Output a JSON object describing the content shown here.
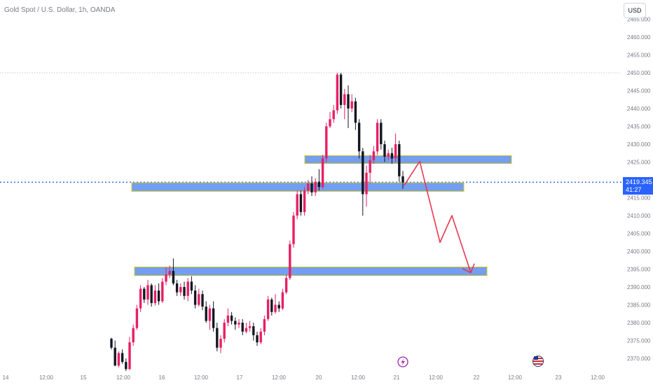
{
  "header": {
    "title": "Gold Spot / U.S. Dollar, 1h, OANDA",
    "currency_button": "USD"
  },
  "price_badge": {
    "price": "2419.345",
    "countdown": "41:27"
  },
  "colors": {
    "up": "#e91e63",
    "down": "#131722",
    "zone_fill": "#5b8def",
    "zone_border": "#d4c91a",
    "arrow": "#e53950",
    "current_price": "#2962ff"
  },
  "chart_data": {
    "type": "candlestick",
    "title": "Gold Spot / U.S. Dollar, 1h, OANDA",
    "ylim": [
      2367,
      2466
    ],
    "y_ticks": [
      "2370.000",
      "2375.000",
      "2380.000",
      "2385.000",
      "2390.000",
      "2395.000",
      "2400.000",
      "2405.000",
      "2410.000",
      "2415.000",
      "2420.000",
      "2425.000",
      "2430.000",
      "2435.000",
      "2440.000",
      "2445.000",
      "2450.000",
      "2455.000",
      "2460.000",
      "2465.000"
    ],
    "x_ticks": [
      "14",
      "12:00",
      "15",
      "12:00",
      "16",
      "12:00",
      "17",
      "12:00",
      "20",
      "12:00",
      "21",
      "12:00",
      "22",
      "12:00",
      "23",
      "12:00"
    ],
    "current_price": 2419.345,
    "high_line": 2450.0,
    "zones": [
      {
        "from": 2426.8,
        "to": 2424.6
      },
      {
        "from": 2419.2,
        "to": 2416.8
      },
      {
        "from": 2395.6,
        "to": 2393.2
      }
    ],
    "projection": [
      2418.5,
      2425.2,
      2402.5,
      2410.0,
      2394.0
    ],
    "candles": [
      [
        2375.5,
        2373.0,
        2375.8,
        2372.5
      ],
      [
        2373.0,
        2368.0,
        2375.0,
        2367.8
      ],
      [
        2368.0,
        2371.5,
        2372.0,
        2367.5
      ],
      [
        2371.5,
        2369.0,
        2372.5,
        2368.5
      ],
      [
        2369.0,
        2367.0,
        2370.0,
        2366.5
      ],
      [
        2367.0,
        2374.5,
        2376.0,
        2366.8
      ],
      [
        2374.5,
        2378.5,
        2379.5,
        2373.5
      ],
      [
        2378.5,
        2384.0,
        2385.0,
        2378.0
      ],
      [
        2384.0,
        2389.5,
        2390.5,
        2383.0
      ],
      [
        2389.5,
        2386.5,
        2390.0,
        2385.5
      ],
      [
        2386.5,
        2390.5,
        2392.0,
        2385.0
      ],
      [
        2390.5,
        2385.5,
        2391.0,
        2384.5
      ],
      [
        2385.5,
        2389.0,
        2390.5,
        2384.8
      ],
      [
        2389.0,
        2386.0,
        2391.0,
        2385.0
      ],
      [
        2386.0,
        2391.5,
        2392.5,
        2385.5
      ],
      [
        2391.5,
        2393.5,
        2395.5,
        2390.5
      ],
      [
        2393.5,
        2394.5,
        2396.0,
        2392.5
      ],
      [
        2394.5,
        2391.0,
        2398.0,
        2390.5
      ],
      [
        2391.0,
        2388.5,
        2392.0,
        2387.5
      ],
      [
        2388.5,
        2390.0,
        2391.0,
        2387.5
      ],
      [
        2390.0,
        2387.5,
        2391.5,
        2386.5
      ],
      [
        2387.5,
        2391.5,
        2392.5,
        2386.0
      ],
      [
        2391.5,
        2389.0,
        2393.0,
        2388.0
      ],
      [
        2389.0,
        2385.0,
        2390.5,
        2384.0
      ],
      [
        2385.0,
        2388.0,
        2389.5,
        2384.5
      ],
      [
        2388.0,
        2384.5,
        2389.0,
        2383.5
      ],
      [
        2384.5,
        2380.5,
        2386.0,
        2380.0
      ],
      [
        2380.5,
        2384.0,
        2385.0,
        2378.0
      ],
      [
        2384.0,
        2378.5,
        2386.0,
        2377.5
      ],
      [
        2378.5,
        2373.0,
        2380.0,
        2372.0
      ],
      [
        2373.0,
        2375.5,
        2376.5,
        2371.5
      ],
      [
        2375.5,
        2380.0,
        2381.0,
        2374.5
      ],
      [
        2380.0,
        2382.0,
        2384.0,
        2379.0
      ],
      [
        2382.0,
        2380.5,
        2383.0,
        2379.5
      ],
      [
        2380.5,
        2379.5,
        2381.5,
        2378.0
      ],
      [
        2379.5,
        2380.0,
        2381.0,
        2378.5
      ],
      [
        2380.0,
        2377.5,
        2381.0,
        2376.5
      ],
      [
        2377.5,
        2378.5,
        2380.0,
        2377.0
      ],
      [
        2378.5,
        2379.0,
        2380.5,
        2377.5
      ],
      [
        2379.0,
        2376.5,
        2380.0,
        2375.0
      ],
      [
        2376.5,
        2374.5,
        2377.5,
        2373.5
      ],
      [
        2374.5,
        2377.5,
        2378.5,
        2374.0
      ],
      [
        2377.5,
        2381.0,
        2382.0,
        2376.5
      ],
      [
        2381.0,
        2386.5,
        2387.5,
        2380.5
      ],
      [
        2386.5,
        2383.0,
        2387.0,
        2382.0
      ],
      [
        2383.0,
        2385.0,
        2388.0,
        2382.5
      ],
      [
        2385.0,
        2384.0,
        2386.0,
        2383.0
      ],
      [
        2384.0,
        2388.5,
        2389.5,
        2383.5
      ],
      [
        2388.5,
        2392.5,
        2393.5,
        2388.0
      ],
      [
        2392.5,
        2402.0,
        2403.0,
        2392.0
      ],
      [
        2402.0,
        2410.0,
        2411.0,
        2401.0
      ],
      [
        2410.0,
        2416.0,
        2417.0,
        2409.0
      ],
      [
        2416.0,
        2411.0,
        2417.0,
        2410.0
      ],
      [
        2411.0,
        2417.0,
        2418.0,
        2410.0
      ],
      [
        2417.0,
        2419.0,
        2420.0,
        2416.0
      ],
      [
        2419.0,
        2416.5,
        2421.0,
        2415.5
      ],
      [
        2416.5,
        2419.5,
        2420.5,
        2415.5
      ],
      [
        2419.5,
        2418.0,
        2423.0,
        2417.0
      ],
      [
        2418.0,
        2426.0,
        2427.0,
        2417.5
      ],
      [
        2426.0,
        2435.0,
        2436.0,
        2425.0
      ],
      [
        2435.0,
        2437.0,
        2439.0,
        2434.5
      ],
      [
        2437.0,
        2439.5,
        2441.0,
        2436.0
      ],
      [
        2439.5,
        2449.5,
        2450.0,
        2438.5
      ],
      [
        2449.5,
        2441.0,
        2450.0,
        2440.0
      ],
      [
        2441.0,
        2444.0,
        2445.5,
        2437.0
      ],
      [
        2444.0,
        2440.0,
        2446.5,
        2434.5
      ],
      [
        2440.0,
        2442.0,
        2444.0,
        2439.0
      ],
      [
        2442.0,
        2436.0,
        2443.0,
        2434.0
      ],
      [
        2436.0,
        2428.0,
        2437.0,
        2426.0
      ],
      [
        2428.0,
        2416.0,
        2429.0,
        2410.0
      ],
      [
        2416.0,
        2422.0,
        2424.0,
        2412.5
      ],
      [
        2422.0,
        2425.5,
        2427.0,
        2419.0
      ],
      [
        2425.5,
        2428.0,
        2429.5,
        2424.5
      ],
      [
        2428.0,
        2436.0,
        2437.0,
        2427.0
      ],
      [
        2436.0,
        2430.0,
        2437.0,
        2428.5
      ],
      [
        2430.0,
        2426.5,
        2431.0,
        2425.0
      ],
      [
        2426.5,
        2427.5,
        2428.5,
        2425.5
      ],
      [
        2427.5,
        2426.0,
        2429.0,
        2424.5
      ],
      [
        2426.0,
        2430.0,
        2433.0,
        2425.0
      ],
      [
        2430.0,
        2421.0,
        2431.0,
        2419.5
      ],
      [
        2421.0,
        2419.3,
        2422.5,
        2417.5
      ]
    ]
  }
}
